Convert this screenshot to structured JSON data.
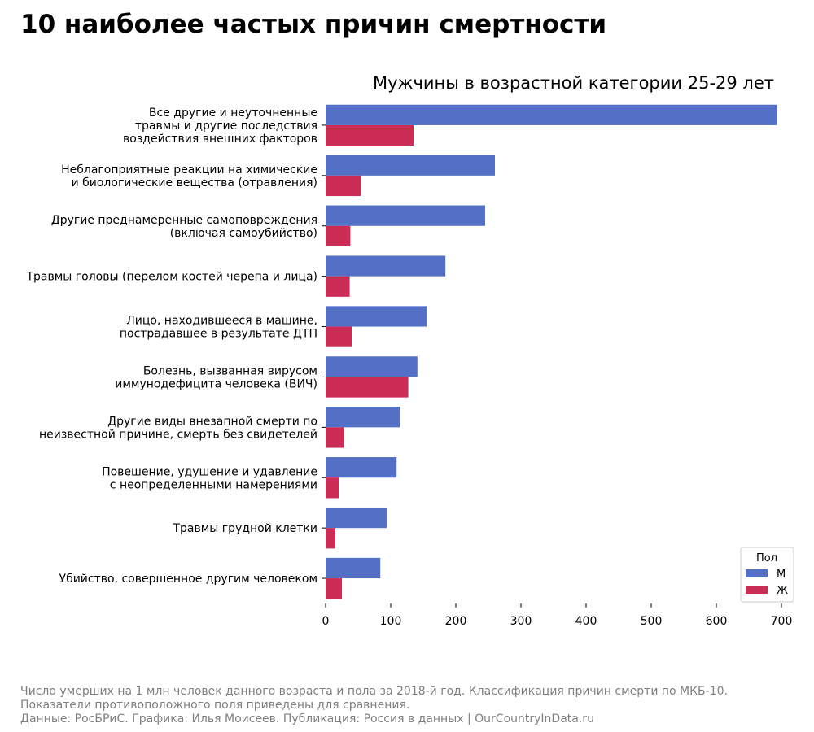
{
  "title": "10 наиболее частых причин смертности",
  "footnote": [
    "Число умерших на 1 млн человек данного возраста и пола за 2018-й год. Классификация причин смерти по МКБ-10.",
    "Показатели противоположного поля приведены для сравнения.",
    "Данные: РосБРиС. Графика: Илья Моисеев. Публикация: Россия в данных | OurCountryInData.ru"
  ],
  "chart_data": {
    "type": "bar",
    "orientation": "horizontal",
    "subtitle": "Мужчины в возрастной категории 25-29 лет",
    "categories": [
      [
        "Все другие и неуточненные",
        "травмы и другие последствия",
        "воздействия внешних факторов"
      ],
      [
        "Неблагоприятные реакции на химические",
        "и биологические вещества (отравления)"
      ],
      [
        "Другие преднамеренные самоповреждения",
        "(включая самоубийство)"
      ],
      [
        "Травмы головы (перелом костей черепа и лица)"
      ],
      [
        "Лицо, находившееся в машине,",
        "пострадавшее в результате ДТП"
      ],
      [
        "Болезнь, вызванная вирусом",
        "иммунодефицита человека (ВИЧ)"
      ],
      [
        "Другие виды внезапной смерти по",
        "неизвестной причине, смерть без свидетелей"
      ],
      [
        "Повешение, удушение и удавление",
        "с неопределенными намерениями"
      ],
      [
        "Травмы грудной клетки"
      ],
      [
        "Убийство, совершенное другим человеком"
      ]
    ],
    "series": [
      {
        "name": "М",
        "color": "#5470c6",
        "values": [
          693,
          260,
          245,
          184,
          155,
          141,
          114,
          109,
          94,
          84
        ]
      },
      {
        "name": "Ж",
        "color": "#cc2d56",
        "values": [
          135,
          54,
          38,
          37,
          40,
          127,
          28,
          20,
          15,
          25
        ]
      }
    ],
    "xlim": [
      0,
      700
    ],
    "xticks": [
      0,
      100,
      200,
      300,
      400,
      500,
      600,
      700
    ],
    "grid": false,
    "legend": {
      "title": "Пол",
      "position": "lower-right"
    }
  }
}
